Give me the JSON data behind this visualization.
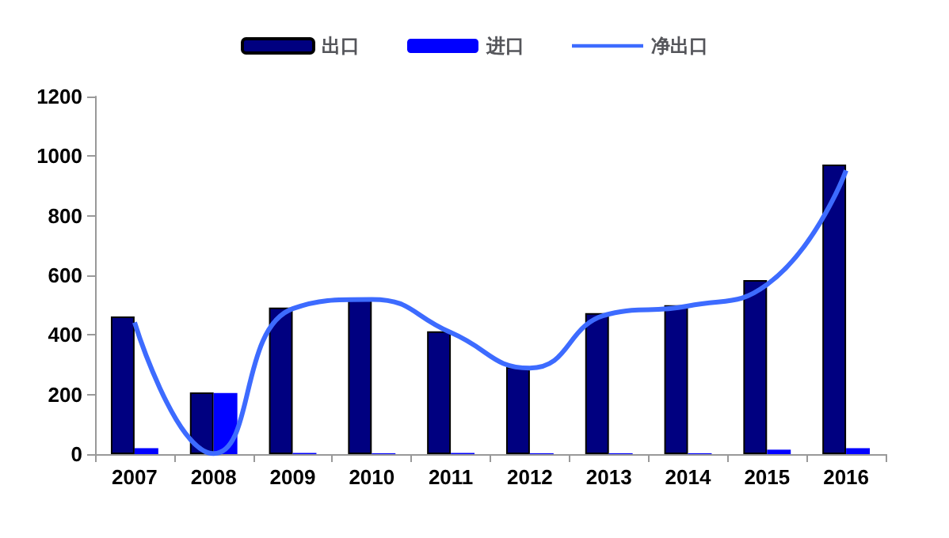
{
  "chart_data": {
    "type": "bar",
    "categories": [
      "2007",
      "2008",
      "2009",
      "2010",
      "2011",
      "2012",
      "2013",
      "2014",
      "2015",
      "2016"
    ],
    "series": [
      {
        "name": "出口",
        "color": "#000080",
        "values": [
          462,
          207,
          492,
          522,
          412,
          292,
          473,
          500,
          584,
          972
        ]
      },
      {
        "name": "进口",
        "color": "#0000ff",
        "values": [
          20,
          205,
          4,
          3,
          4,
          3,
          3,
          3,
          15,
          20
        ]
      },
      {
        "name": "净出口",
        "type": "line",
        "color": "#3d6bff",
        "values": [
          442,
          2,
          488,
          519,
          408,
          289,
          470,
          497,
          569,
          952
        ]
      }
    ],
    "ylim": [
      0,
      1200
    ],
    "yticks": [
      0,
      200,
      400,
      600,
      800,
      1000,
      1200
    ],
    "grid": false,
    "legend": "top",
    "marker": "none",
    "line_style": "solid"
  }
}
